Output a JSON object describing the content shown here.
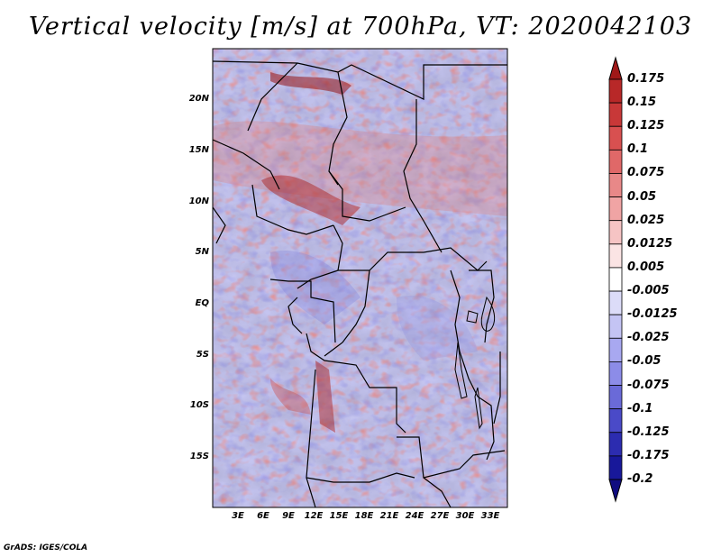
{
  "title": "Vertical velocity [m/s] at 700hPa, VT: 2020042103",
  "credit": "GrADS: IGES/COLA",
  "map": {
    "lon_range_deg": [
      0,
      35
    ],
    "lat_range_deg": [
      -20,
      25
    ],
    "projection": "latlon",
    "region": "Central Africa",
    "lat_ticks": [
      "20N",
      "15N",
      "10N",
      "5N",
      "EQ",
      "5S",
      "10S",
      "15S"
    ],
    "lon_ticks": [
      "3E",
      "6E",
      "9E",
      "12E",
      "15E",
      "18E",
      "21E",
      "24E",
      "27E",
      "30E",
      "33E"
    ],
    "background_pattern": "noisy red/blue vertical velocity field"
  },
  "colorbar": {
    "orientation": "vertical",
    "labels": [
      "0.175",
      "0.15",
      "0.125",
      "0.1",
      "0.075",
      "0.05",
      "0.025",
      "0.0125",
      "0.005",
      "-0.005",
      "-0.0125",
      "-0.025",
      "-0.05",
      "-0.075",
      "-0.1",
      "-0.125",
      "-0.175",
      "-0.2"
    ],
    "colors": [
      "#a01818",
      "#b82828",
      "#c83838",
      "#d85050",
      "#e06868",
      "#e88888",
      "#f0a4a4",
      "#f6c4c4",
      "#fbe4e4",
      "#ffffff",
      "#dcdcf8",
      "#c4c4f4",
      "#a8a8f0",
      "#8c8ce8",
      "#6a6ad8",
      "#4a4ac8",
      "#2c2cb0",
      "#18189a",
      "#100c80"
    ]
  }
}
